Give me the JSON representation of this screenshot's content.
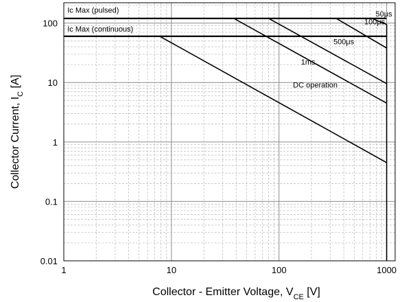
{
  "chart_data": {
    "type": "line",
    "x_scale": "log",
    "y_scale": "log",
    "xlim": [
      1,
      1200
    ],
    "ylim": [
      0.01,
      220
    ],
    "grid": true,
    "x_ticks": [
      {
        "value": 1,
        "label": "1"
      },
      {
        "value": 10,
        "label": "10"
      },
      {
        "value": 100,
        "label": "100"
      },
      {
        "value": 1000,
        "label": "1000"
      }
    ],
    "y_ticks": [
      {
        "value": 0.01,
        "label": "0.01"
      },
      {
        "value": 0.1,
        "label": "0.1"
      },
      {
        "value": 1,
        "label": "1"
      },
      {
        "value": 10,
        "label": "10"
      },
      {
        "value": 100,
        "label": "100"
      }
    ],
    "xlabel": {
      "main": "Collector - Emitter Voltage, V",
      "sub": "CE",
      "unit": " [V]"
    },
    "ylabel": {
      "main": "Collector Current, I",
      "sub": "C",
      "unit": " [A]"
    },
    "series": [
      {
        "label": "50μs",
        "label_at": [
          790,
          130
        ],
        "points": [
          [
            1,
            120
          ],
          [
            730,
            120
          ],
          [
            1000,
            95
          ],
          [
            1000,
            0.01
          ]
        ]
      },
      {
        "label": "100μs",
        "label_at": [
          620,
          95
        ],
        "points": [
          [
            1,
            120
          ],
          [
            340,
            120
          ],
          [
            1000,
            38
          ]
        ]
      },
      {
        "label": "500μs",
        "label_at": [
          320,
          44
        ],
        "points": [
          [
            1,
            120
          ],
          [
            80,
            120
          ],
          [
            1000,
            9.6
          ]
        ]
      },
      {
        "label": "1ms",
        "label_at": [
          160,
          20
        ],
        "points": [
          [
            1,
            120
          ],
          [
            38,
            120
          ],
          [
            1000,
            4.5
          ]
        ]
      },
      {
        "label": "DC operation",
        "label_at": [
          135,
          8.2
        ],
        "points": [
          [
            1,
            60
          ],
          [
            7.8,
            60
          ],
          [
            1000,
            0.45
          ]
        ]
      }
    ],
    "annotations": [
      {
        "name": "ic-max-pulsed",
        "text": "Ic Max (pulsed)",
        "at": [
          1.08,
          150
        ],
        "line": [
          1,
          1000,
          120
        ]
      },
      {
        "name": "ic-max-continuous",
        "text": "Ic Max (continuous)",
        "at": [
          1.08,
          72
        ],
        "line": [
          1,
          1000,
          60
        ]
      }
    ]
  }
}
